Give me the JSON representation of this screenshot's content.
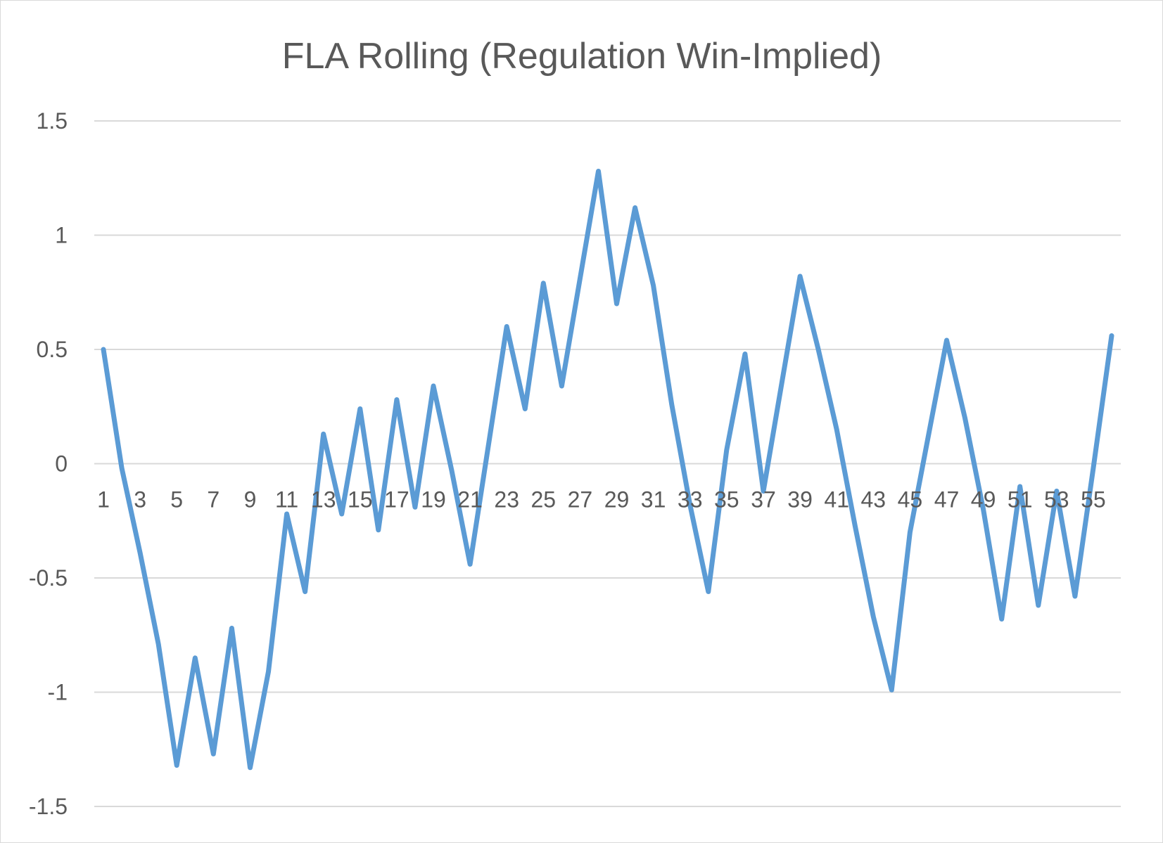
{
  "chart_data": {
    "type": "line",
    "title": "FLA Rolling (Regulation Win-Implied)",
    "xlabel": "",
    "ylabel": "",
    "ylim": [
      -1.5,
      1.5
    ],
    "yticks": [
      1.5,
      1,
      0.5,
      0,
      -0.5,
      -1,
      -1.5
    ],
    "ytick_labels": [
      "1.5",
      "1",
      "0.5",
      "0",
      "-0.5",
      "-1",
      "-1.5"
    ],
    "x": [
      1,
      2,
      3,
      4,
      5,
      6,
      7,
      8,
      9,
      10,
      11,
      12,
      13,
      14,
      15,
      16,
      17,
      18,
      19,
      20,
      21,
      22,
      23,
      24,
      25,
      26,
      27,
      28,
      29,
      30,
      31,
      32,
      33,
      34,
      35,
      36,
      37,
      38,
      39,
      40,
      41,
      42,
      43,
      44,
      45,
      46,
      47,
      48,
      49,
      50,
      51,
      52,
      53,
      54,
      55,
      56
    ],
    "xtick_labels": [
      "1",
      "3",
      "5",
      "7",
      "9",
      "11",
      "13",
      "15",
      "17",
      "19",
      "21",
      "23",
      "25",
      "27",
      "29",
      "31",
      "33",
      "35",
      "37",
      "39",
      "41",
      "43",
      "45",
      "47",
      "49",
      "51",
      "53",
      "55"
    ],
    "grid": true,
    "legend": "none",
    "series": [
      {
        "color": "#5b9bd5",
        "values": [
          0.5,
          -0.02,
          -0.39,
          -0.79,
          -1.32,
          -0.85,
          -1.27,
          -0.72,
          -1.33,
          -0.91,
          -0.22,
          -0.56,
          0.13,
          -0.22,
          0.24,
          -0.29,
          0.28,
          -0.19,
          0.34,
          -0.03,
          -0.44,
          0.08,
          0.6,
          0.24,
          0.79,
          0.34,
          0.81,
          1.28,
          0.7,
          1.12,
          0.78,
          0.26,
          -0.18,
          -0.56,
          0.06,
          0.48,
          -0.12,
          0.35,
          0.82,
          0.5,
          0.15,
          -0.27,
          -0.67,
          -0.99,
          -0.3,
          0.12,
          0.54,
          0.2,
          -0.2,
          -0.68,
          -0.1,
          -0.62,
          -0.12,
          -0.58,
          -0.02,
          0.56
        ]
      }
    ]
  }
}
